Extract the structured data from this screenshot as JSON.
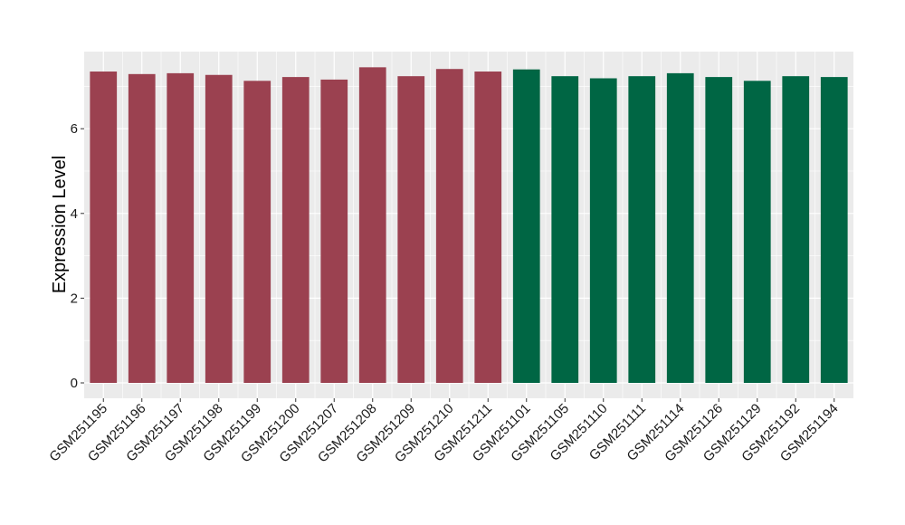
{
  "chart_data": {
    "type": "bar",
    "title": "",
    "xlabel": "",
    "ylabel": "Expression Level",
    "ylim": [
      0,
      7.5
    ],
    "yticks": [
      0,
      2,
      4,
      6
    ],
    "grid": true,
    "legend": "none",
    "categories": [
      "GSM251195",
      "GSM251196",
      "GSM251197",
      "GSM251198",
      "GSM251199",
      "GSM251200",
      "GSM251207",
      "GSM251208",
      "GSM251209",
      "GSM251210",
      "GSM251211",
      "GSM251101",
      "GSM251105",
      "GSM251110",
      "GSM251111",
      "GSM251114",
      "GSM251126",
      "GSM251129",
      "GSM251192",
      "GSM251194"
    ],
    "values": [
      7.35,
      7.29,
      7.31,
      7.27,
      7.13,
      7.22,
      7.16,
      7.45,
      7.24,
      7.41,
      7.35,
      7.4,
      7.24,
      7.19,
      7.24,
      7.31,
      7.22,
      7.13,
      7.24,
      7.22
    ],
    "bar_colors": [
      "#9b4150",
      "#9b4150",
      "#9b4150",
      "#9b4150",
      "#9b4150",
      "#9b4150",
      "#9b4150",
      "#9b4150",
      "#9b4150",
      "#9b4150",
      "#9b4150",
      "#006644",
      "#006644",
      "#006644",
      "#006644",
      "#006644",
      "#006644",
      "#006644",
      "#006644",
      "#006644"
    ],
    "colors": {
      "panel_background": "#ebebeb",
      "gridline": "#ffffff",
      "group_a": "#9b4150",
      "group_b": "#006644"
    }
  }
}
